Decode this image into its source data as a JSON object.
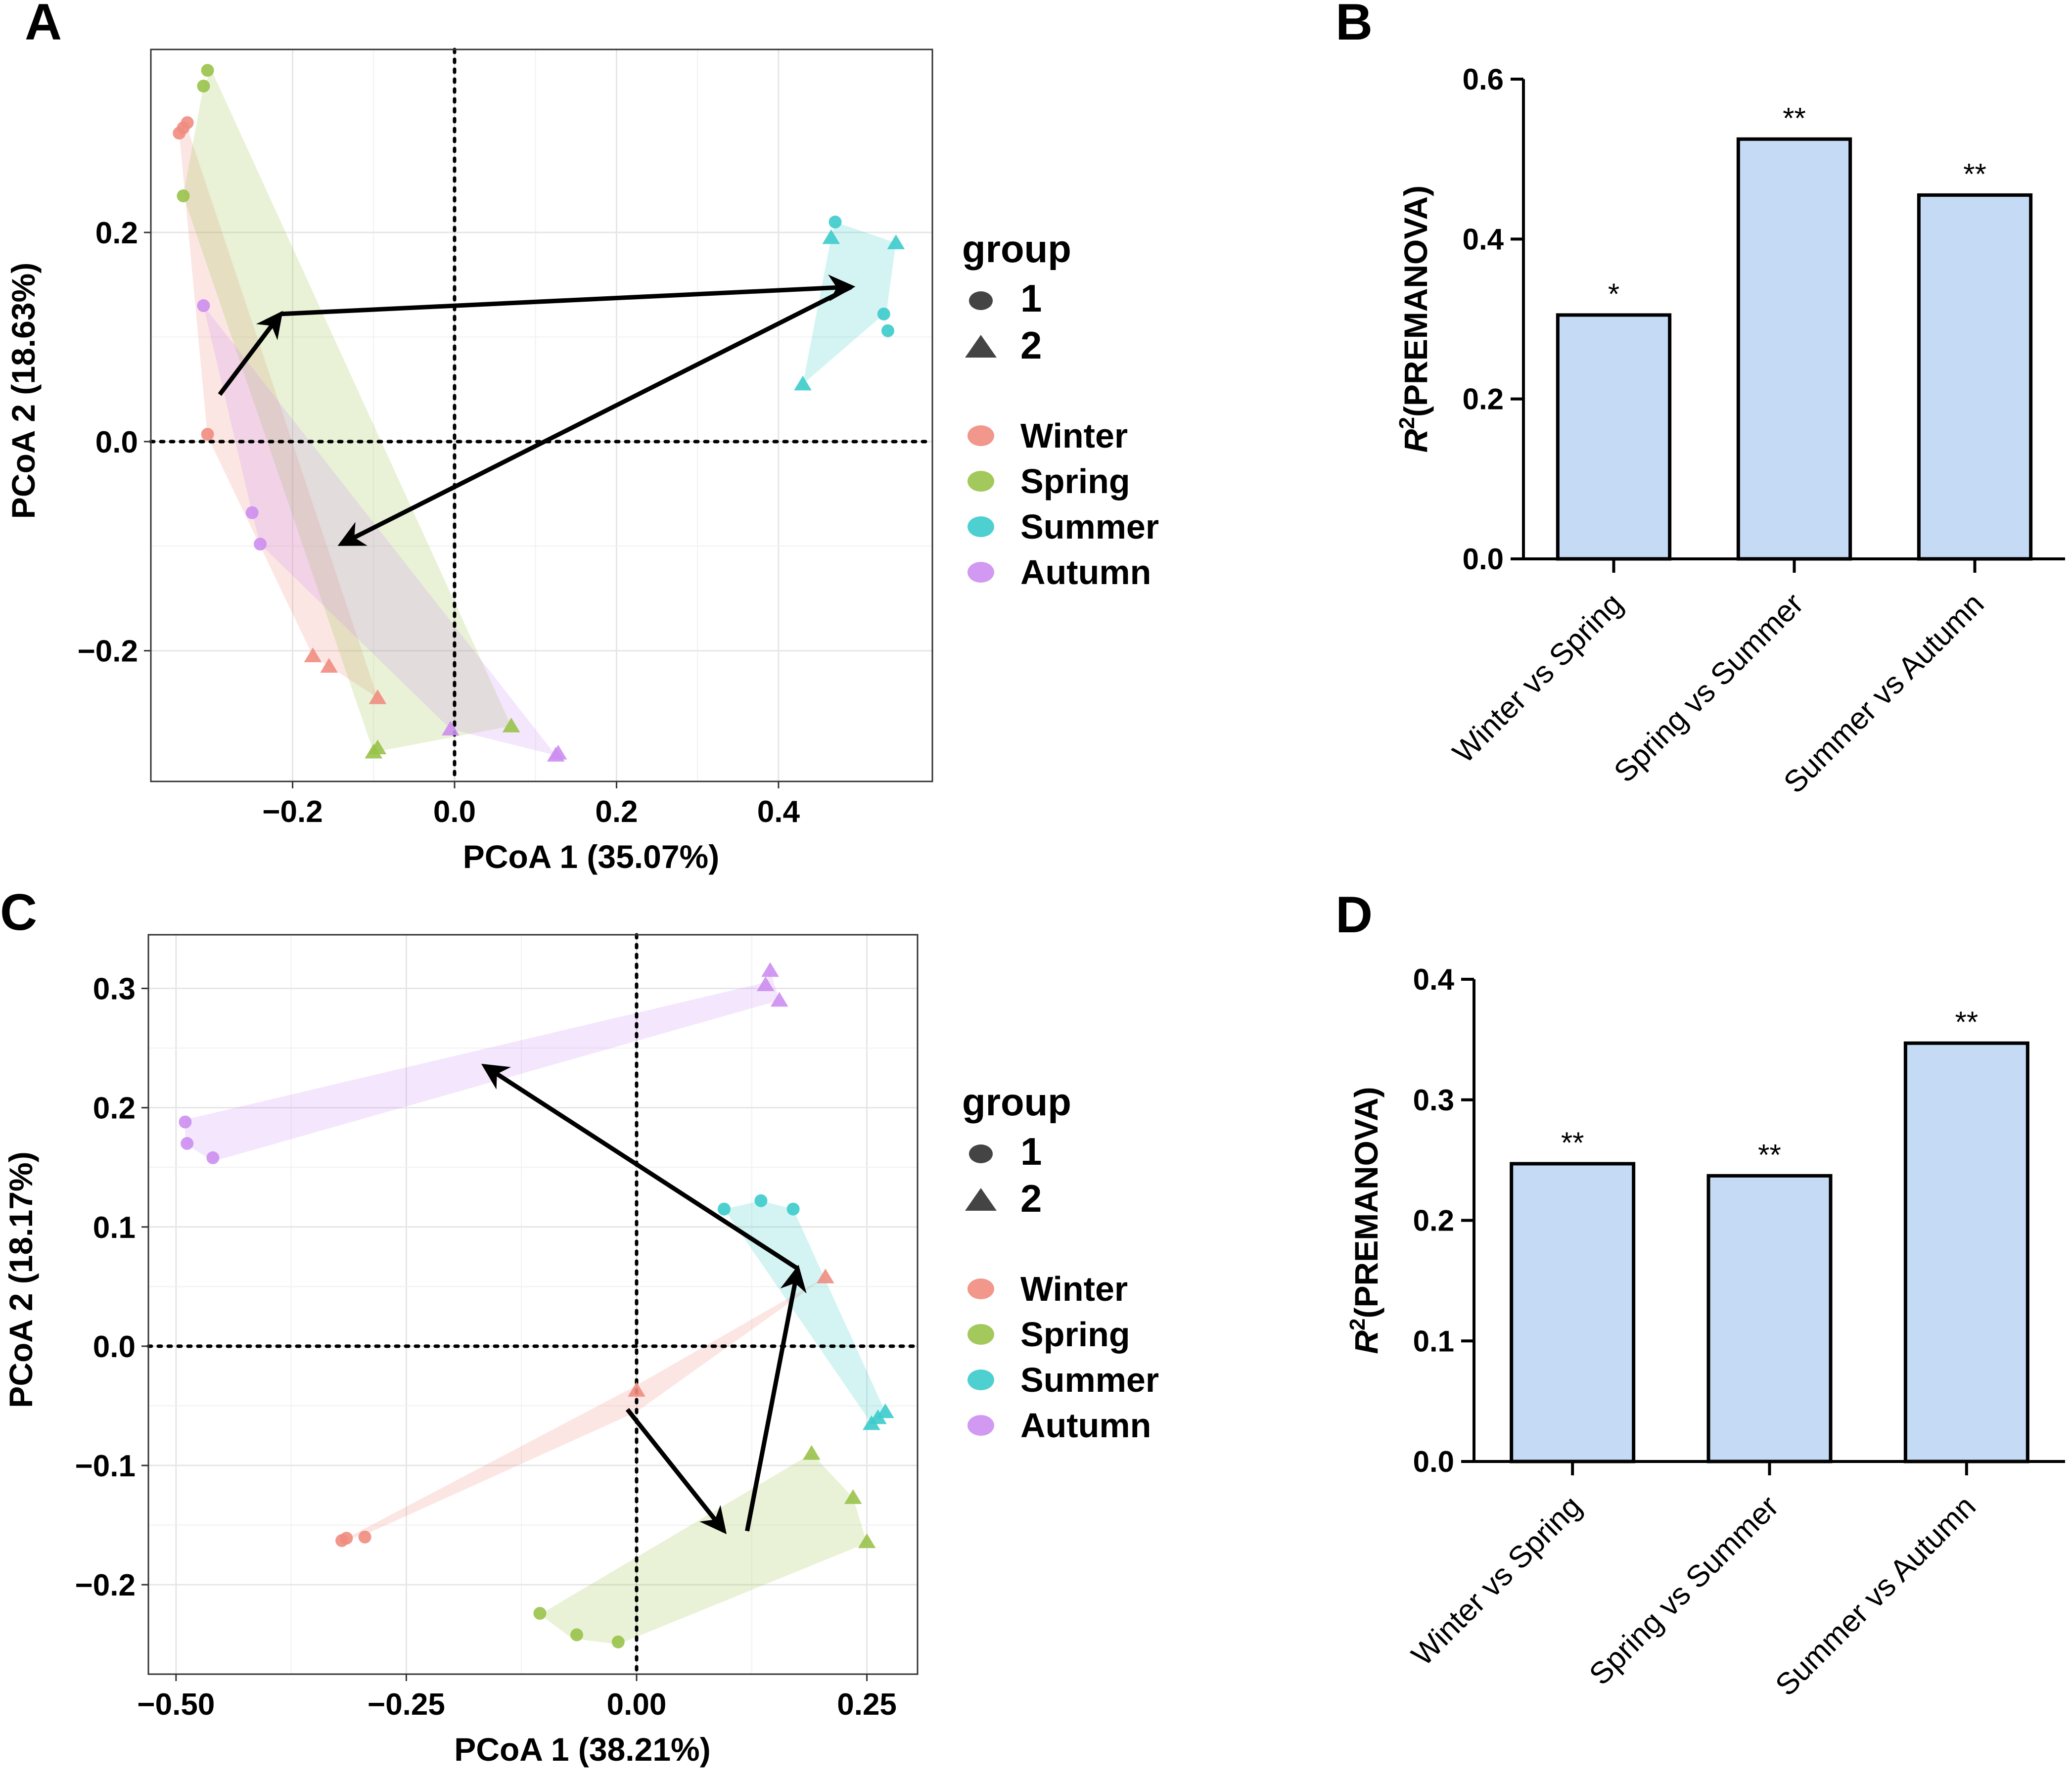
{
  "colors": {
    "Winter": "#f08c80",
    "Spring": "#99c24a",
    "Summer": "#3ccbcb",
    "Autumn": "#cc8ef0",
    "bar_fill": "#c4daf5",
    "arrow": "#000000"
  },
  "chart_data": [
    {
      "panel": "A",
      "type": "scatter",
      "xlabel": "PCoA 1 (35.07%)",
      "ylabel": "PCoA 2 (18.63%)",
      "xlim": [
        -0.375,
        0.59
      ],
      "ylim": [
        -0.325,
        0.375
      ],
      "xticks": [
        -0.2,
        0.0,
        0.2,
        0.4
      ],
      "xtick_labels": [
        "−0.2",
        "0.0",
        "0.2",
        "0.4"
      ],
      "yticks": [
        -0.2,
        0.0,
        0.2
      ],
      "ytick_labels": [
        "−0.2",
        "0.0",
        "0.2"
      ],
      "legend": {
        "title": "group",
        "shapes": [
          "1",
          "2"
        ],
        "seasons": [
          "Winter",
          "Spring",
          "Summer",
          "Autumn"
        ]
      },
      "hulls": [
        {
          "season": "Winter",
          "points": [
            [
              -0.33,
              0.3
            ],
            [
              -0.34,
              0.295
            ],
            [
              -0.305,
              0.005
            ],
            [
              -0.175,
              -0.205
            ],
            [
              -0.155,
              -0.215
            ],
            [
              -0.095,
              -0.245
            ]
          ]
        },
        {
          "season": "Spring",
          "points": [
            [
              -0.3,
              0.355
            ],
            [
              -0.31,
              0.34
            ],
            [
              -0.335,
              0.235
            ],
            [
              -0.1,
              -0.297
            ],
            [
              0.07,
              -0.272
            ]
          ]
        },
        {
          "season": "Summer",
          "points": [
            [
              0.47,
              0.21
            ],
            [
              0.545,
              0.19
            ],
            [
              0.53,
              0.105
            ],
            [
              0.535,
              0.125
            ],
            [
              0.43,
              0.055
            ],
            [
              0.465,
              0.195
            ]
          ]
        },
        {
          "season": "Autumn",
          "points": [
            [
              -0.31,
              0.13
            ],
            [
              -0.25,
              -0.068
            ],
            [
              -0.24,
              -0.098
            ],
            [
              -0.005,
              -0.275
            ],
            [
              0.125,
              -0.3
            ]
          ]
        }
      ],
      "series": [
        {
          "season": "Winter",
          "group": "1",
          "x": [
            -0.335,
            -0.33,
            -0.34,
            -0.305
          ],
          "y": [
            0.3,
            0.305,
            0.295,
            0.007
          ]
        },
        {
          "season": "Winter",
          "group": "2",
          "x": [
            -0.175,
            -0.155,
            -0.095
          ],
          "y": [
            -0.205,
            -0.215,
            -0.245
          ]
        },
        {
          "season": "Spring",
          "group": "1",
          "x": [
            -0.305,
            -0.31,
            -0.335
          ],
          "y": [
            0.355,
            0.34,
            0.235
          ]
        },
        {
          "season": "Spring",
          "group": "2",
          "x": [
            -0.1,
            -0.095,
            0.07
          ],
          "y": [
            -0.297,
            -0.293,
            -0.272
          ]
        },
        {
          "season": "Summer",
          "group": "1",
          "x": [
            0.47,
            0.53,
            0.535
          ],
          "y": [
            0.21,
            0.122,
            0.106
          ]
        },
        {
          "season": "Summer",
          "group": "2",
          "x": [
            0.465,
            0.545,
            0.43
          ],
          "y": [
            0.195,
            0.19,
            0.055
          ]
        },
        {
          "season": "Autumn",
          "group": "1",
          "x": [
            -0.31,
            -0.25,
            -0.24
          ],
          "y": [
            0.13,
            -0.068,
            -0.098
          ]
        },
        {
          "season": "Autumn",
          "group": "2",
          "x": [
            -0.005,
            0.125,
            0.128
          ],
          "y": [
            -0.275,
            -0.3,
            -0.298
          ]
        }
      ],
      "arrows": [
        [
          [
            -0.29,
            0.045
          ],
          [
            -0.215,
            0.122
          ]
        ],
        [
          [
            -0.215,
            0.122
          ],
          [
            0.49,
            0.148
          ]
        ],
        [
          [
            0.49,
            0.148
          ],
          [
            -0.14,
            -0.098
          ]
        ]
      ]
    },
    {
      "panel": "B",
      "type": "bar",
      "ylabel": "R2(PREMANOVA)",
      "ylim": [
        0,
        0.6
      ],
      "yticks": [
        0.0,
        0.2,
        0.4,
        0.6
      ],
      "ytick_labels": [
        "0.0",
        "0.2",
        "0.4",
        "0.6"
      ],
      "categories": [
        "Winter vs Spring",
        "Spring vs Summer",
        "Summer vs Autumn"
      ],
      "values": [
        0.305,
        0.525,
        0.455
      ],
      "significance": [
        "*",
        "**",
        "**"
      ]
    },
    {
      "panel": "C",
      "type": "scatter",
      "xlabel": "PCoA 1 (38.21%)",
      "ylabel": "PCoA 2 (18.17%)",
      "xlim": [
        -0.53,
        0.305
      ],
      "ylim": [
        -0.275,
        0.345
      ],
      "xticks": [
        -0.5,
        -0.25,
        0.0,
        0.25
      ],
      "xtick_labels": [
        "−0.50",
        "−0.25",
        "0.00",
        "0.25"
      ],
      "yticks": [
        -0.2,
        -0.1,
        0.0,
        0.1,
        0.2,
        0.3
      ],
      "ytick_labels": [
        "−0.2",
        "−0.1",
        "0.0",
        "0.1",
        "0.2",
        "0.3"
      ],
      "legend": {
        "title": "group",
        "shapes": [
          "1",
          "2"
        ],
        "seasons": [
          "Winter",
          "Spring",
          "Summer",
          "Autumn"
        ]
      },
      "hulls": [
        {
          "season": "Winter",
          "points": [
            [
              -0.32,
              -0.163
            ],
            [
              -0.295,
              -0.158
            ],
            [
              0.0,
              -0.055
            ],
            [
              0.205,
              0.058
            ],
            [
              -0.005,
              -0.035
            ]
          ]
        },
        {
          "season": "Spring",
          "points": [
            [
              -0.105,
              -0.225
            ],
            [
              -0.07,
              -0.245
            ],
            [
              -0.02,
              -0.25
            ],
            [
              0.25,
              -0.165
            ],
            [
              0.235,
              -0.127
            ],
            [
              0.19,
              -0.09
            ]
          ]
        },
        {
          "season": "Summer",
          "points": [
            [
              0.095,
              0.115
            ],
            [
              0.135,
              0.122
            ],
            [
              0.17,
              0.115
            ],
            [
              0.27,
              -0.055
            ],
            [
              0.255,
              -0.065
            ]
          ]
        },
        {
          "season": "Autumn",
          "points": [
            [
              -0.49,
              0.19
            ],
            [
              -0.49,
              0.17
            ],
            [
              -0.46,
              0.155
            ],
            [
              0.155,
              0.29
            ],
            [
              0.145,
              0.315
            ],
            [
              0.14,
              0.305
            ]
          ]
        }
      ],
      "series": [
        {
          "season": "Winter",
          "group": "1",
          "x": [
            -0.32,
            -0.315,
            -0.295
          ],
          "y": [
            -0.163,
            -0.161,
            -0.16
          ]
        },
        {
          "season": "Winter",
          "group": "2",
          "x": [
            0.205,
            0.0
          ],
          "y": [
            0.058,
            -0.037
          ]
        },
        {
          "season": "Spring",
          "group": "1",
          "x": [
            -0.105,
            -0.065,
            -0.02
          ],
          "y": [
            -0.224,
            -0.242,
            -0.248
          ]
        },
        {
          "season": "Spring",
          "group": "2",
          "x": [
            0.19,
            0.235,
            0.25
          ],
          "y": [
            -0.09,
            -0.127,
            -0.164
          ]
        },
        {
          "season": "Summer",
          "group": "1",
          "x": [
            0.095,
            0.135,
            0.17
          ],
          "y": [
            0.115,
            0.122,
            0.115
          ]
        },
        {
          "season": "Summer",
          "group": "2",
          "x": [
            0.255,
            0.262,
            0.27
          ],
          "y": [
            -0.065,
            -0.06,
            -0.055
          ]
        },
        {
          "season": "Autumn",
          "group": "1",
          "x": [
            -0.49,
            -0.488,
            -0.46
          ],
          "y": [
            0.188,
            0.17,
            0.158
          ]
        },
        {
          "season": "Autumn",
          "group": "2",
          "x": [
            0.145,
            0.14,
            0.155
          ],
          "y": [
            0.315,
            0.303,
            0.29
          ]
        }
      ],
      "arrows": [
        [
          [
            -0.01,
            -0.053
          ],
          [
            0.095,
            -0.155
          ]
        ],
        [
          [
            0.12,
            -0.155
          ],
          [
            0.175,
            0.065
          ]
        ],
        [
          [
            0.175,
            0.065
          ],
          [
            -0.165,
            0.235
          ]
        ]
      ]
    },
    {
      "panel": "D",
      "type": "bar",
      "ylabel": "R2(PREMANOVA)",
      "ylim": [
        0,
        0.4
      ],
      "yticks": [
        0.0,
        0.1,
        0.2,
        0.3,
        0.4
      ],
      "ytick_labels": [
        "0.0",
        "0.1",
        "0.2",
        "0.3",
        "0.4"
      ],
      "categories": [
        "Winter vs Spring",
        "Spring vs Summer",
        "Summer vs Autumn"
      ],
      "values": [
        0.247,
        0.237,
        0.347
      ],
      "significance": [
        "**",
        "**",
        "**"
      ]
    }
  ]
}
